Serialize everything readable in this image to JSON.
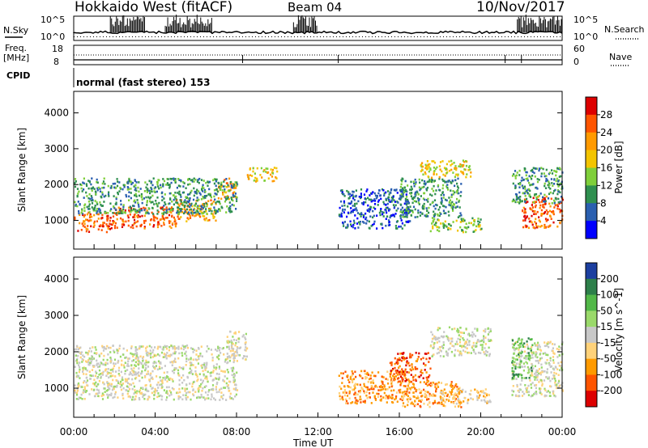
{
  "header": {
    "station": "Hokkaido West (fitACF)",
    "beam": "Beam 04",
    "date": "10/Nov/2017"
  },
  "summary": {
    "nsky_label": "N.Sky",
    "nsearch_label": "N.Search",
    "freq_label_line1": "Freq.",
    "freq_label_line2": "[MHz]",
    "nave_label": "Nave",
    "cpid_label": "CPID",
    "noise_axis": {
      "top": "10^5",
      "bottom": "10^0"
    },
    "freq_axis": {
      "top": "18",
      "bottom": "8"
    },
    "nave_axis": {
      "top": "60",
      "bottom": "0"
    },
    "cpid_text": "normal (fast stereo) 153"
  },
  "chart_data": [
    {
      "type": "heatmap",
      "name": "power-panel",
      "ylabel": "Slant Range [km]",
      "ylim": [
        200,
        4600
      ],
      "yticks": [
        1000,
        2000,
        3000,
        4000
      ],
      "xlim": [
        0,
        24
      ],
      "colorbar": {
        "label": "Power [dB]",
        "ticks": [
          "28",
          "24",
          "20",
          "16",
          "12",
          "8",
          "4"
        ],
        "colors": [
          "#dd0000",
          "#ff5500",
          "#ff9a00",
          "#f3c400",
          "#7fcf3a",
          "#2f8f4f",
          "#2a5fb0",
          "#0000ff"
        ]
      },
      "regions": [
        {
          "t0": 0.0,
          "t1": 2.0,
          "r0": 700,
          "r1": 1250,
          "level": 1
        },
        {
          "t0": 2.0,
          "t1": 5.0,
          "r0": 800,
          "r1": 1400,
          "level": 1
        },
        {
          "t0": 5.0,
          "t1": 7.0,
          "r0": 1000,
          "r1": 1600,
          "level": 2
        },
        {
          "t0": 7.0,
          "t1": 8.0,
          "r0": 1600,
          "r1": 2200,
          "level": 2
        },
        {
          "t0": 8.5,
          "t1": 10.0,
          "r0": 2100,
          "r1": 2500,
          "level": 3
        },
        {
          "t0": 0.0,
          "t1": 8.0,
          "r0": 1200,
          "r1": 2200,
          "level": 5
        },
        {
          "t0": 13.0,
          "t1": 16.5,
          "r0": 800,
          "r1": 1900,
          "level": 6
        },
        {
          "t0": 16.0,
          "t1": 19.0,
          "r0": 1100,
          "r1": 2200,
          "level": 5
        },
        {
          "t0": 17.0,
          "t1": 19.5,
          "r0": 2200,
          "r1": 2700,
          "level": 3
        },
        {
          "t0": 17.5,
          "t1": 20.0,
          "r0": 700,
          "r1": 1100,
          "level": 4
        },
        {
          "t0": 22.0,
          "t1": 24.0,
          "r0": 800,
          "r1": 1700,
          "level": 1
        },
        {
          "t0": 21.5,
          "t1": 24.0,
          "r0": 1500,
          "r1": 2500,
          "level": 5
        }
      ]
    },
    {
      "type": "heatmap",
      "name": "velocity-panel",
      "ylabel": "Slant Range [km]",
      "ylim": [
        200,
        4600
      ],
      "yticks": [
        1000,
        2000,
        3000,
        4000
      ],
      "xlabel": "Time UT",
      "xlim": [
        0,
        24
      ],
      "xticks": [
        "00:00",
        "04:00",
        "08:00",
        "12:00",
        "16:00",
        "20:00",
        "00:00"
      ],
      "colorbar": {
        "label": "Velocity [m s^-1]",
        "ticks": [
          "200",
          "100",
          "50",
          "15",
          "-15",
          "-50",
          "-100",
          "-200"
        ],
        "colors": [
          "#1c3fa0",
          "#2d7f4a",
          "#52b848",
          "#9ad96a",
          "#c8c8c8",
          "#ffd27a",
          "#ff9a00",
          "#ff5500",
          "#dd0000"
        ]
      },
      "regions": [
        {
          "t0": 0.0,
          "t1": 8.0,
          "r0": 700,
          "r1": 2200,
          "level": 4
        },
        {
          "t0": 7.5,
          "t1": 8.5,
          "r0": 1800,
          "r1": 2600,
          "level": 4
        },
        {
          "t0": 13.0,
          "t1": 16.5,
          "r0": 600,
          "r1": 1500,
          "level": 6
        },
        {
          "t0": 15.5,
          "t1": 17.5,
          "r0": 1200,
          "r1": 2000,
          "level": 7
        },
        {
          "t0": 16.0,
          "t1": 19.0,
          "r0": 500,
          "r1": 1200,
          "level": 6
        },
        {
          "t0": 18.0,
          "t1": 20.5,
          "r0": 600,
          "r1": 1000,
          "level": 5
        },
        {
          "t0": 17.5,
          "t1": 20.5,
          "r0": 1900,
          "r1": 2700,
          "level": 4
        },
        {
          "t0": 21.5,
          "t1": 24.0,
          "r0": 800,
          "r1": 2300,
          "level": 4
        },
        {
          "t0": 21.5,
          "t1": 22.5,
          "r0": 1300,
          "r1": 2400,
          "level": 2
        }
      ]
    }
  ]
}
